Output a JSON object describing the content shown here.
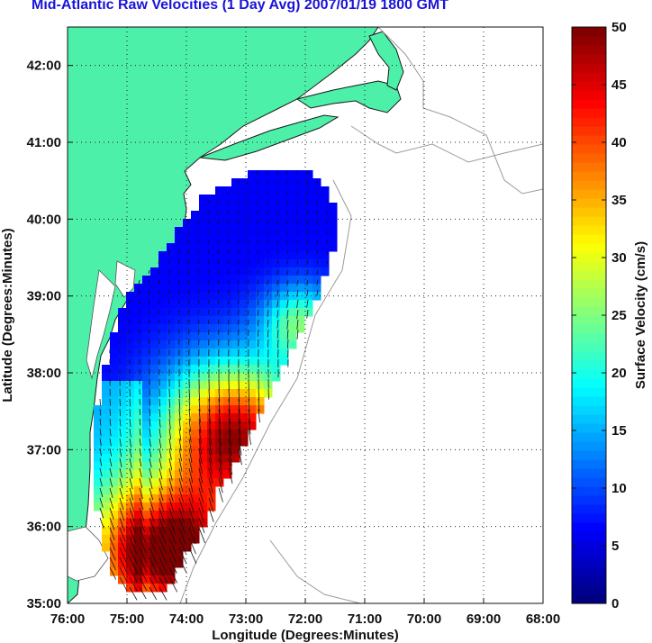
{
  "title": "Mid-Atlantic Raw Velocities (1 Day Avg) 2007/01/19 1800 GMT",
  "map": {
    "xlabel": "Longitude (Degrees:Minutes)",
    "ylabel": "Latitude (Degrees:Minutes)",
    "lon_ticks": [
      "76:00",
      "75:00",
      "74:00",
      "73:00",
      "72:00",
      "71:00",
      "70:00",
      "69:00",
      "68:00"
    ],
    "lat_ticks": [
      "42:00",
      "41:00",
      "40:00",
      "39:00",
      "38:00",
      "37:00",
      "36:00",
      "35:00"
    ],
    "lon_range": [
      -76,
      -68
    ],
    "lat_range": [
      35,
      42.5
    ],
    "grid": true,
    "land_color": "#4df0a8",
    "coast_color": "#8a8a8a"
  },
  "colorbar": {
    "label": "Surface Velocity (cm/s)",
    "ticks": [
      "0",
      "5",
      "10",
      "15",
      "20",
      "25",
      "30",
      "35",
      "40",
      "45",
      "50"
    ],
    "range": [
      0,
      50
    ],
    "colormap": "jet"
  }
}
